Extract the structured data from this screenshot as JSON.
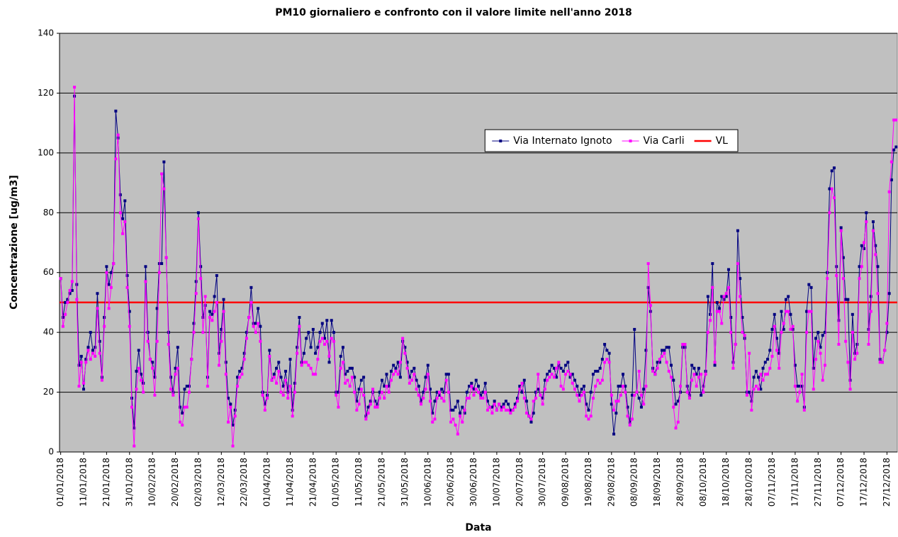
{
  "chart_data": {
    "type": "line",
    "title": "PM10 giornaliero e confronto con il valore limite nell'anno 2018",
    "x_label": "Data",
    "y_label": "Concentrazione [ug/m3]",
    "categories": [
      "01/01/2018",
      null,
      null,
      null,
      null,
      null,
      null,
      null,
      null,
      null,
      "11/01/2018",
      null,
      null,
      null,
      null,
      null,
      null,
      null,
      null,
      null,
      "21/01/2018",
      null,
      null,
      null,
      null,
      null,
      null,
      null,
      null,
      null,
      "31/01/2018",
      null,
      null,
      null,
      null,
      null,
      null,
      null,
      null,
      null,
      "10/02/2018",
      null,
      null,
      null,
      null,
      null,
      null,
      null,
      null,
      null,
      "20/02/2018",
      null,
      null,
      null,
      null,
      null,
      null,
      null,
      null,
      null,
      "02/03/2018",
      null,
      null,
      null,
      null,
      null,
      null,
      null,
      null,
      null,
      "12/03/2018",
      null,
      null,
      null,
      null,
      null,
      null,
      null,
      null,
      null,
      "22/03/2018",
      null,
      null,
      null,
      null,
      null,
      null,
      null,
      null,
      null,
      "01/04/2018",
      null,
      null,
      null,
      null,
      null,
      null,
      null,
      null,
      null,
      "11/04/2018",
      null,
      null,
      null,
      null,
      null,
      null,
      null,
      null,
      null,
      "21/04/2018",
      null,
      null,
      null,
      null,
      null,
      null,
      null,
      null,
      null,
      "01/05/2018",
      null,
      null,
      null,
      null,
      null,
      null,
      null,
      null,
      null,
      "11/05/2018",
      null,
      null,
      null,
      null,
      null,
      null,
      null,
      null,
      null,
      "21/05/2018",
      null,
      null,
      null,
      null,
      null,
      null,
      null,
      null,
      null,
      "31/05/2018",
      null,
      null,
      null,
      null,
      null,
      null,
      null,
      null,
      null,
      "10/06/2018",
      null,
      null,
      null,
      null,
      null,
      null,
      null,
      null,
      null,
      "20/06/2018",
      null,
      null,
      null,
      null,
      null,
      null,
      null,
      null,
      null,
      "30/06/2018",
      null,
      null,
      null,
      null,
      null,
      null,
      null,
      null,
      null,
      "10/07/2018",
      null,
      null,
      null,
      null,
      null,
      null,
      null,
      null,
      null,
      "20/07/2018",
      null,
      null,
      null,
      null,
      null,
      null,
      null,
      null,
      null,
      "30/07/2018",
      null,
      null,
      null,
      null,
      null,
      null,
      null,
      null,
      null,
      "09/08/2018",
      null,
      null,
      null,
      null,
      null,
      null,
      null,
      null,
      null,
      "19/08/2018",
      null,
      null,
      null,
      null,
      null,
      null,
      null,
      null,
      null,
      "29/08/2018",
      null,
      null,
      null,
      null,
      null,
      null,
      null,
      null,
      null,
      "08/09/2018",
      null,
      null,
      null,
      null,
      null,
      null,
      null,
      null,
      null,
      "18/09/2018",
      null,
      null,
      null,
      null,
      null,
      null,
      null,
      null,
      null,
      "28/09/2018",
      null,
      null,
      null,
      null,
      null,
      null,
      null,
      null,
      null,
      "08/10/2018",
      null,
      null,
      null,
      null,
      null,
      null,
      null,
      null,
      null,
      "18/10/2018",
      null,
      null,
      null,
      null,
      null,
      null,
      null,
      null,
      null,
      "28/10/2018",
      null,
      null,
      null,
      null,
      null,
      null,
      null,
      null,
      null,
      "07/11/2018",
      null,
      null,
      null,
      null,
      null,
      null,
      null,
      null,
      null,
      "17/11/2018",
      null,
      null,
      null,
      null,
      null,
      null,
      null,
      null,
      null,
      "27/11/2018",
      null,
      null,
      null,
      null,
      null,
      null,
      null,
      null,
      null,
      "07/12/2018",
      null,
      null,
      null,
      null,
      null,
      null,
      null,
      null,
      null,
      "17/12/2018",
      null,
      null,
      null,
      null,
      null,
      null,
      null,
      null,
      null,
      "27/12/2018",
      null,
      null,
      null,
      null
    ],
    "series": [
      {
        "name": "Via Internato Ignoto",
        "color": "#000080",
        "values": [
          58,
          45,
          50,
          51,
          53,
          54,
          119,
          56,
          29,
          32,
          21,
          31,
          35,
          40,
          34,
          35,
          53,
          37,
          25,
          45,
          62,
          56,
          60,
          63,
          114,
          105,
          86,
          78,
          84,
          59,
          47,
          18,
          8,
          27,
          34,
          26,
          23,
          62,
          40,
          31,
          30,
          25,
          48,
          63,
          63,
          97,
          65,
          40,
          25,
          20,
          28,
          35,
          15,
          13,
          21,
          22,
          22,
          31,
          43,
          57,
          80,
          62,
          45,
          49,
          25,
          47,
          46,
          52,
          59,
          33,
          41,
          51,
          30,
          18,
          16,
          9,
          14,
          25,
          27,
          28,
          33,
          40,
          45,
          55,
          43,
          43,
          48,
          42,
          20,
          16,
          19,
          34,
          24,
          26,
          28,
          30,
          25,
          22,
          27,
          20,
          31,
          14,
          23,
          35,
          45,
          30,
          33,
          38,
          40,
          35,
          41,
          33,
          35,
          40,
          43,
          38,
          44,
          30,
          44,
          40,
          20,
          20,
          32,
          35,
          26,
          27,
          28,
          28,
          25,
          17,
          21,
          24,
          25,
          12,
          15,
          17,
          20,
          17,
          16,
          20,
          24,
          22,
          26,
          22,
          27,
          29,
          28,
          30,
          25,
          37,
          35,
          30,
          25,
          27,
          28,
          24,
          22,
          17,
          20,
          25,
          29,
          21,
          13,
          17,
          20,
          19,
          21,
          20,
          26,
          26,
          14,
          14,
          15,
          17,
          13,
          15,
          13,
          20,
          22,
          23,
          21,
          24,
          22,
          19,
          20,
          23,
          17,
          15,
          15,
          17,
          14,
          16,
          15,
          16,
          17,
          16,
          14,
          14,
          16,
          18,
          22,
          20,
          24,
          17,
          12,
          10,
          13,
          20,
          21,
          19,
          18,
          24,
          26,
          27,
          29,
          28,
          25,
          29,
          28,
          27,
          29,
          30,
          25,
          26,
          24,
          22,
          19,
          21,
          22,
          16,
          14,
          20,
          26,
          27,
          27,
          28,
          31,
          36,
          34,
          33,
          16,
          6,
          13,
          22,
          22,
          26,
          22,
          15,
          10,
          19,
          41,
          20,
          18,
          15,
          21,
          34,
          55,
          47,
          28,
          26,
          30,
          30,
          34,
          34,
          35,
          35,
          29,
          24,
          16,
          17,
          20,
          35,
          35,
          22,
          19,
          29,
          28,
          26,
          28,
          19,
          22,
          27,
          52,
          46,
          63,
          29,
          50,
          48,
          52,
          51,
          52,
          61,
          45,
          30,
          36,
          74,
          58,
          45,
          38,
          20,
          20,
          17,
          25,
          27,
          25,
          21,
          28,
          30,
          31,
          34,
          41,
          46,
          38,
          33,
          47,
          41,
          51,
          52,
          46,
          41,
          29,
          22,
          22,
          22,
          15,
          47,
          56,
          55,
          28,
          38,
          40,
          35,
          39,
          40,
          60,
          88,
          94,
          95,
          62,
          44,
          75,
          65,
          51,
          51,
          24,
          46,
          33,
          36,
          62,
          69,
          68,
          80,
          41,
          52,
          77,
          69,
          62,
          31,
          30,
          34,
          40,
          53,
          91,
          101,
          102
        ]
      },
      {
        "name": "Via Carli",
        "color": "#ff00ff",
        "values": [
          58,
          42,
          46,
          50,
          54,
          57,
          122,
          51,
          22,
          30,
          23,
          30,
          34,
          31,
          33,
          32,
          48,
          33,
          24,
          42,
          60,
          48,
          55,
          63,
          98,
          106,
          80,
          73,
          77,
          55,
          42,
          15,
          2,
          21,
          28,
          24,
          20,
          57,
          37,
          31,
          28,
          19,
          37,
          60,
          93,
          88,
          65,
          36,
          21,
          19,
          26,
          28,
          10,
          9,
          15,
          15,
          20,
          31,
          40,
          53,
          78,
          58,
          40,
          52,
          22,
          45,
          44,
          47,
          50,
          29,
          37,
          47,
          26,
          10,
          15,
          2,
          12,
          22,
          25,
          26,
          31,
          38,
          45,
          50,
          42,
          40,
          43,
          37,
          19,
          14,
          18,
          32,
          24,
          25,
          23,
          27,
          20,
          19,
          24,
          18,
          22,
          12,
          20,
          33,
          42,
          29,
          30,
          30,
          29,
          28,
          26,
          26,
          31,
          37,
          38,
          36,
          37,
          32,
          38,
          37,
          19,
          15,
          28,
          30,
          23,
          24,
          22,
          25,
          20,
          14,
          16,
          21,
          19,
          11,
          13,
          16,
          21,
          15,
          15,
          18,
          20,
          18,
          22,
          20,
          24,
          26,
          27,
          26,
          30,
          38,
          33,
          28,
          23,
          24,
          26,
          21,
          19,
          16,
          18,
          21,
          26,
          17,
          10,
          11,
          18,
          20,
          18,
          17,
          24,
          20,
          10,
          11,
          9,
          6,
          12,
          10,
          14,
          18,
          18,
          22,
          19,
          21,
          20,
          18,
          18,
          20,
          14,
          15,
          13,
          16,
          14,
          16,
          14,
          15,
          14,
          14,
          13,
          14,
          15,
          17,
          21,
          23,
          18,
          13,
          12,
          11,
          17,
          18,
          26,
          19,
          16,
          21,
          24,
          25,
          26,
          25,
          28,
          30,
          22,
          21,
          26,
          27,
          26,
          23,
          21,
          19,
          17,
          19,
          20,
          12,
          11,
          12,
          18,
          22,
          24,
          23,
          24,
          30,
          31,
          30,
          19,
          14,
          17,
          17,
          19,
          22,
          20,
          12,
          9,
          11,
          19,
          20,
          27,
          19,
          16,
          22,
          63,
          49,
          27,
          26,
          28,
          31,
          32,
          33,
          30,
          27,
          25,
          15,
          8,
          10,
          22,
          36,
          36,
          20,
          18,
          24,
          26,
          22,
          25,
          26,
          20,
          26,
          40,
          44,
          55,
          30,
          47,
          47,
          43,
          52,
          53,
          55,
          40,
          28,
          36,
          63,
          52,
          40,
          39,
          19,
          33,
          14,
          21,
          22,
          21,
          26,
          24,
          26,
          26,
          28,
          32,
          42,
          34,
          28,
          40,
          43,
          47,
          47,
          41,
          42,
          22,
          17,
          20,
          26,
          14,
          40,
          47,
          47,
          21,
          31,
          37,
          33,
          24,
          29,
          58,
          80,
          88,
          85,
          59,
          36,
          74,
          58,
          37,
          30,
          21,
          40,
          31,
          33,
          58,
          62,
          70,
          77,
          36,
          47,
          74,
          66,
          53,
          30,
          30,
          34,
          43,
          87,
          97,
          111,
          111
        ]
      }
    ],
    "reference_line": {
      "name": "VL",
      "value": 50,
      "color": "#ff0000"
    },
    "ylim": [
      0,
      140
    ],
    "yticks": [
      0,
      20,
      40,
      60,
      80,
      100,
      120,
      140
    ],
    "grid": true,
    "plot_background": "#c0c0c0",
    "legend": "top-right"
  }
}
